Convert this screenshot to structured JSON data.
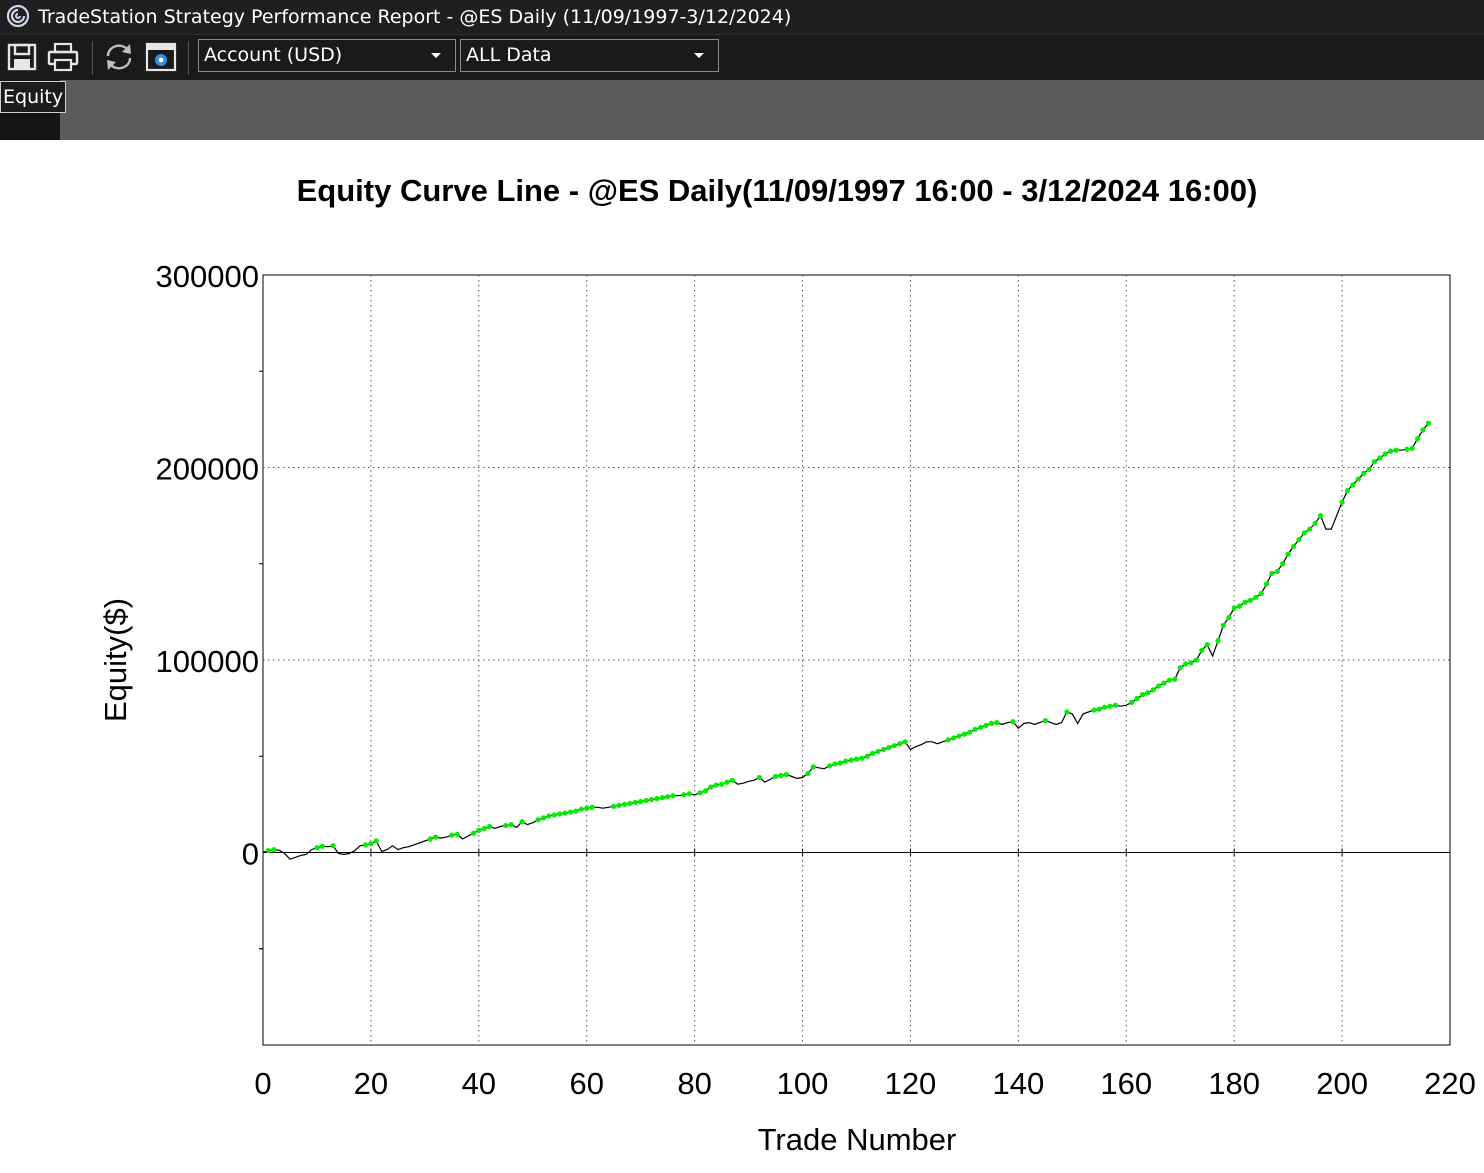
{
  "window": {
    "title": "TradeStation Strategy Performance Report - @ES Daily (11/09/1997-3/12/2024)",
    "icon": "tradestation-logo-icon"
  },
  "toolbar": {
    "buttons": [
      {
        "name": "save-icon"
      },
      {
        "name": "print-icon"
      },
      {
        "name": "refresh-icon"
      },
      {
        "name": "settings-icon"
      }
    ],
    "account_dropdown": "Account (USD)",
    "data_dropdown": "ALL Data"
  },
  "tabs": [
    {
      "label": "Equity",
      "active": true
    }
  ],
  "colors": {
    "chrome_bg": "#1f1f1f",
    "tabstrip_bg": "#5b5b5b",
    "equity_line": "#000000",
    "new_high_marker": "#00ee00",
    "grid": "#555555"
  },
  "chart_data": {
    "type": "line",
    "title": "Equity Curve Line - @ES Daily(11/09/1997 16:00 - 3/12/2024 16:00)",
    "xlabel": "Trade Number",
    "ylabel": "Equity($)",
    "xlim": [
      0,
      220
    ],
    "ylim": [
      -100000,
      300000
    ],
    "xticks": [
      0,
      20,
      40,
      60,
      80,
      100,
      120,
      140,
      160,
      180,
      200,
      220
    ],
    "yticks": [
      0,
      100000,
      200000,
      300000
    ],
    "grid": true,
    "legend": "none",
    "series": [
      {
        "line": "equity",
        "markers": "new-equity-highs",
        "points": [
          [
            0,
            0
          ],
          [
            1,
            1000
          ],
          [
            2,
            1500
          ],
          [
            3,
            1200
          ],
          [
            4,
            -500
          ],
          [
            5,
            -3500
          ],
          [
            6,
            -2500
          ],
          [
            7,
            -1500
          ],
          [
            8,
            -1000
          ],
          [
            9,
            1500
          ],
          [
            10,
            2500
          ],
          [
            11,
            3200
          ],
          [
            12,
            3000
          ],
          [
            13,
            3500
          ],
          [
            14,
            -500
          ],
          [
            15,
            -1000
          ],
          [
            16,
            -500
          ],
          [
            17,
            1000
          ],
          [
            18,
            3500
          ],
          [
            19,
            4000
          ],
          [
            20,
            4500
          ],
          [
            21,
            6000
          ],
          [
            22,
            500
          ],
          [
            23,
            1500
          ],
          [
            24,
            3500
          ],
          [
            25,
            1500
          ],
          [
            26,
            2500
          ],
          [
            27,
            3000
          ],
          [
            28,
            4000
          ],
          [
            29,
            5000
          ],
          [
            30,
            6000
          ],
          [
            31,
            7000
          ],
          [
            32,
            8000
          ],
          [
            33,
            7500
          ],
          [
            34,
            8000
          ],
          [
            35,
            9000
          ],
          [
            36,
            9500
          ],
          [
            37,
            7000
          ],
          [
            38,
            8500
          ],
          [
            39,
            10000
          ],
          [
            40,
            11500
          ],
          [
            41,
            12500
          ],
          [
            42,
            13500
          ],
          [
            43,
            12500
          ],
          [
            44,
            13500
          ],
          [
            45,
            14000
          ],
          [
            46,
            14500
          ],
          [
            47,
            13000
          ],
          [
            48,
            16000
          ],
          [
            49,
            14500
          ],
          [
            50,
            15500
          ],
          [
            51,
            17000
          ],
          [
            52,
            18000
          ],
          [
            53,
            19000
          ],
          [
            54,
            19500
          ],
          [
            55,
            20000
          ],
          [
            56,
            20500
          ],
          [
            57,
            21000
          ],
          [
            58,
            21500
          ],
          [
            59,
            22500
          ],
          [
            60,
            23000
          ],
          [
            61,
            23500
          ],
          [
            62,
            23500
          ],
          [
            63,
            23000
          ],
          [
            64,
            23500
          ],
          [
            65,
            24000
          ],
          [
            66,
            24500
          ],
          [
            67,
            25000
          ],
          [
            68,
            25500
          ],
          [
            69,
            26000
          ],
          [
            70,
            26500
          ],
          [
            71,
            27000
          ],
          [
            72,
            27500
          ],
          [
            73,
            28000
          ],
          [
            74,
            28500
          ],
          [
            75,
            29000
          ],
          [
            76,
            29500
          ],
          [
            77,
            29500
          ],
          [
            78,
            30000
          ],
          [
            79,
            30500
          ],
          [
            80,
            30000
          ],
          [
            81,
            31000
          ],
          [
            82,
            32000
          ],
          [
            83,
            34000
          ],
          [
            84,
            35000
          ],
          [
            85,
            35500
          ],
          [
            86,
            36500
          ],
          [
            87,
            37500
          ],
          [
            88,
            35500
          ],
          [
            89,
            36000
          ],
          [
            90,
            37000
          ],
          [
            91,
            37500
          ],
          [
            92,
            39000
          ],
          [
            93,
            36500
          ],
          [
            94,
            38000
          ],
          [
            95,
            39500
          ],
          [
            96,
            40000
          ],
          [
            97,
            40500
          ],
          [
            98,
            39500
          ],
          [
            99,
            38500
          ],
          [
            100,
            39000
          ],
          [
            101,
            41000
          ],
          [
            102,
            44500
          ],
          [
            103,
            44000
          ],
          [
            104,
            43500
          ],
          [
            105,
            45000
          ],
          [
            106,
            46000
          ],
          [
            107,
            46500
          ],
          [
            108,
            47500
          ],
          [
            109,
            48000
          ],
          [
            110,
            48500
          ],
          [
            111,
            49000
          ],
          [
            112,
            50000
          ],
          [
            113,
            51500
          ],
          [
            114,
            52500
          ],
          [
            115,
            53500
          ],
          [
            116,
            54500
          ],
          [
            117,
            55500
          ],
          [
            118,
            56500
          ],
          [
            119,
            57500
          ],
          [
            120,
            53500
          ],
          [
            121,
            55000
          ],
          [
            122,
            56000
          ],
          [
            123,
            57500
          ],
          [
            124,
            57500
          ],
          [
            125,
            56500
          ],
          [
            126,
            57500
          ],
          [
            127,
            58500
          ],
          [
            128,
            59500
          ],
          [
            129,
            60500
          ],
          [
            130,
            61500
          ],
          [
            131,
            62500
          ],
          [
            132,
            64000
          ],
          [
            133,
            65000
          ],
          [
            134,
            66000
          ],
          [
            135,
            67000
          ],
          [
            136,
            67500
          ],
          [
            137,
            66500
          ],
          [
            138,
            67500
          ],
          [
            139,
            68000
          ],
          [
            140,
            64500
          ],
          [
            141,
            67000
          ],
          [
            142,
            67500
          ],
          [
            143,
            66500
          ],
          [
            144,
            67500
          ],
          [
            145,
            68500
          ],
          [
            146,
            67500
          ],
          [
            147,
            66500
          ],
          [
            148,
            67500
          ],
          [
            149,
            73000
          ],
          [
            150,
            72000
          ],
          [
            151,
            67000
          ],
          [
            152,
            72000
          ],
          [
            153,
            73000
          ],
          [
            154,
            74000
          ],
          [
            155,
            74500
          ],
          [
            156,
            75500
          ],
          [
            157,
            76000
          ],
          [
            158,
            76500
          ],
          [
            159,
            76000
          ],
          [
            160,
            76500
          ],
          [
            161,
            78000
          ],
          [
            162,
            80000
          ],
          [
            163,
            82000
          ],
          [
            164,
            83000
          ],
          [
            165,
            84500
          ],
          [
            166,
            86500
          ],
          [
            167,
            88000
          ],
          [
            168,
            89500
          ],
          [
            169,
            90000
          ],
          [
            170,
            96000
          ],
          [
            171,
            98000
          ],
          [
            172,
            98500
          ],
          [
            173,
            100000
          ],
          [
            174,
            105000
          ],
          [
            175,
            108000
          ],
          [
            176,
            102000
          ],
          [
            177,
            110000
          ],
          [
            178,
            118000
          ],
          [
            179,
            122000
          ],
          [
            180,
            127000
          ],
          [
            181,
            128000
          ],
          [
            182,
            130000
          ],
          [
            183,
            131000
          ],
          [
            184,
            132500
          ],
          [
            185,
            134500
          ],
          [
            186,
            139500
          ],
          [
            187,
            145000
          ],
          [
            188,
            146000
          ],
          [
            189,
            150000
          ],
          [
            190,
            155000
          ],
          [
            191,
            159000
          ],
          [
            192,
            162500
          ],
          [
            193,
            166000
          ],
          [
            194,
            168000
          ],
          [
            195,
            171000
          ],
          [
            196,
            175000
          ],
          [
            197,
            168000
          ],
          [
            198,
            168000
          ],
          [
            199,
            175000
          ],
          [
            200,
            182000
          ],
          [
            201,
            188000
          ],
          [
            202,
            191000
          ],
          [
            203,
            194000
          ],
          [
            204,
            197000
          ],
          [
            205,
            199000
          ],
          [
            206,
            203000
          ],
          [
            207,
            205000
          ],
          [
            208,
            207000
          ],
          [
            209,
            208500
          ],
          [
            210,
            209000
          ],
          [
            211,
            209000
          ],
          [
            212,
            209500
          ],
          [
            213,
            210000
          ],
          [
            214,
            215000
          ],
          [
            215,
            219500
          ],
          [
            216,
            223000
          ]
        ]
      }
    ]
  }
}
